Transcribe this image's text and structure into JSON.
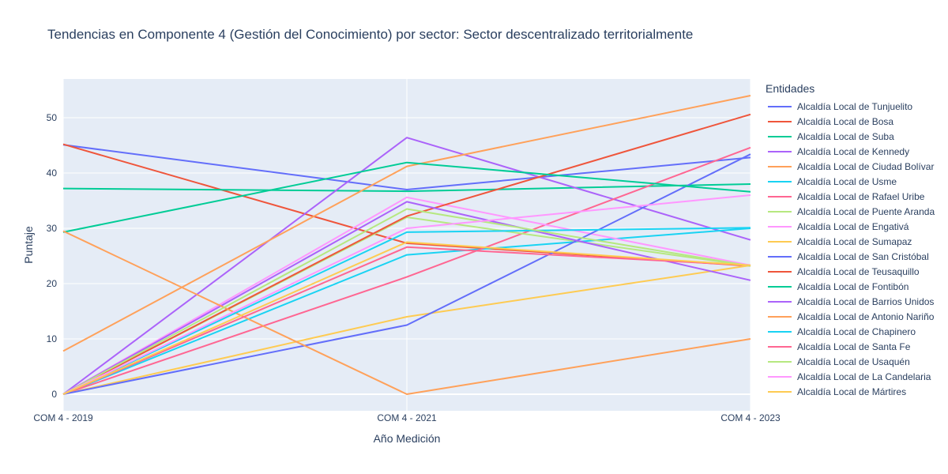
{
  "chart_data": {
    "type": "line",
    "title": "Tendencias en Componente 4 (Gestión del Conocimiento) por sector: Sector descentralizado territorialmente",
    "xlabel": "Año Medición",
    "ylabel": "Puntaje",
    "legend_title": "Entidades",
    "legend_position": "right",
    "grid": true,
    "categories": [
      "COM 4 - 2019",
      "COM 4 - 2021",
      "COM 4 - 2023"
    ],
    "ylim": [
      -3,
      57
    ],
    "yticks": [
      0,
      10,
      20,
      30,
      40,
      50
    ],
    "series": [
      {
        "name": "Alcaldía Local de Tunjuelito",
        "color": "#636efa",
        "values": [
          45.1,
          37.0,
          42.8
        ]
      },
      {
        "name": "Alcaldía Local de Bosa",
        "color": "#EF553B",
        "values": [
          45.2,
          27.3,
          23.2
        ]
      },
      {
        "name": "Alcaldía Local de Suba",
        "color": "#00cc96",
        "values": [
          37.2,
          36.7,
          38.0
        ]
      },
      {
        "name": "Alcaldía Local de Kennedy",
        "color": "#ab63fa",
        "values": [
          0.0,
          46.4,
          27.9
        ]
      },
      {
        "name": "Alcaldía Local de Ciudad Bolívar",
        "color": "#FFA15A",
        "values": [
          7.8,
          41.2,
          54.0
        ]
      },
      {
        "name": "Alcaldía Local de Usme",
        "color": "#19d3f3",
        "values": [
          0.0,
          25.2,
          30.0
        ]
      },
      {
        "name": "Alcaldía Local de Rafael Uribe",
        "color": "#FF6692",
        "values": [
          0.0,
          21.2,
          44.6
        ]
      },
      {
        "name": "Alcaldía Local de Puente Aranda",
        "color": "#B6E880",
        "values": [
          0.0,
          32.0,
          23.2
        ]
      },
      {
        "name": "Alcaldía Local de Engativá",
        "color": "#FF97FF",
        "values": [
          0.0,
          35.6,
          23.3
        ]
      },
      {
        "name": "Alcaldía Local de Sumapaz",
        "color": "#FECB52",
        "values": [
          0.0,
          14.0,
          23.3
        ]
      },
      {
        "name": "Alcaldía Local de San Cristóbal",
        "color": "#636efa",
        "values": [
          0.0,
          12.5,
          43.4
        ]
      },
      {
        "name": "Alcaldía Local de Teusaquillo",
        "color": "#EF553B",
        "values": [
          0.0,
          32.2,
          50.6
        ]
      },
      {
        "name": "Alcaldía Local de Fontibón",
        "color": "#00cc96",
        "values": [
          29.3,
          41.9,
          36.6
        ]
      },
      {
        "name": "Alcaldía Local de Barrios Unidos",
        "color": "#ab63fa",
        "values": [
          0.0,
          34.8,
          20.6
        ]
      },
      {
        "name": "Alcaldía Local de Antonio Nariño",
        "color": "#FFA15A",
        "values": [
          29.5,
          0.0,
          10.0
        ]
      },
      {
        "name": "Alcaldía Local de Chapinero",
        "color": "#19d3f3",
        "values": [
          0.0,
          29.3,
          30.1
        ]
      },
      {
        "name": "Alcaldía Local de Santa Fe",
        "color": "#FF6692",
        "values": [
          0.0,
          26.6,
          23.3
        ]
      },
      {
        "name": "Alcaldía Local de Usaquén",
        "color": "#B6E880",
        "values": [
          0.0,
          33.5,
          23.2
        ]
      },
      {
        "name": "Alcaldía Local de La Candelaria",
        "color": "#FF97FF",
        "values": [
          0.0,
          30.0,
          36.0
        ]
      },
      {
        "name": "Alcaldía Local de Mártires",
        "color": "#FECB52",
        "values": [
          0.0,
          27.5,
          23.3
        ]
      }
    ]
  }
}
